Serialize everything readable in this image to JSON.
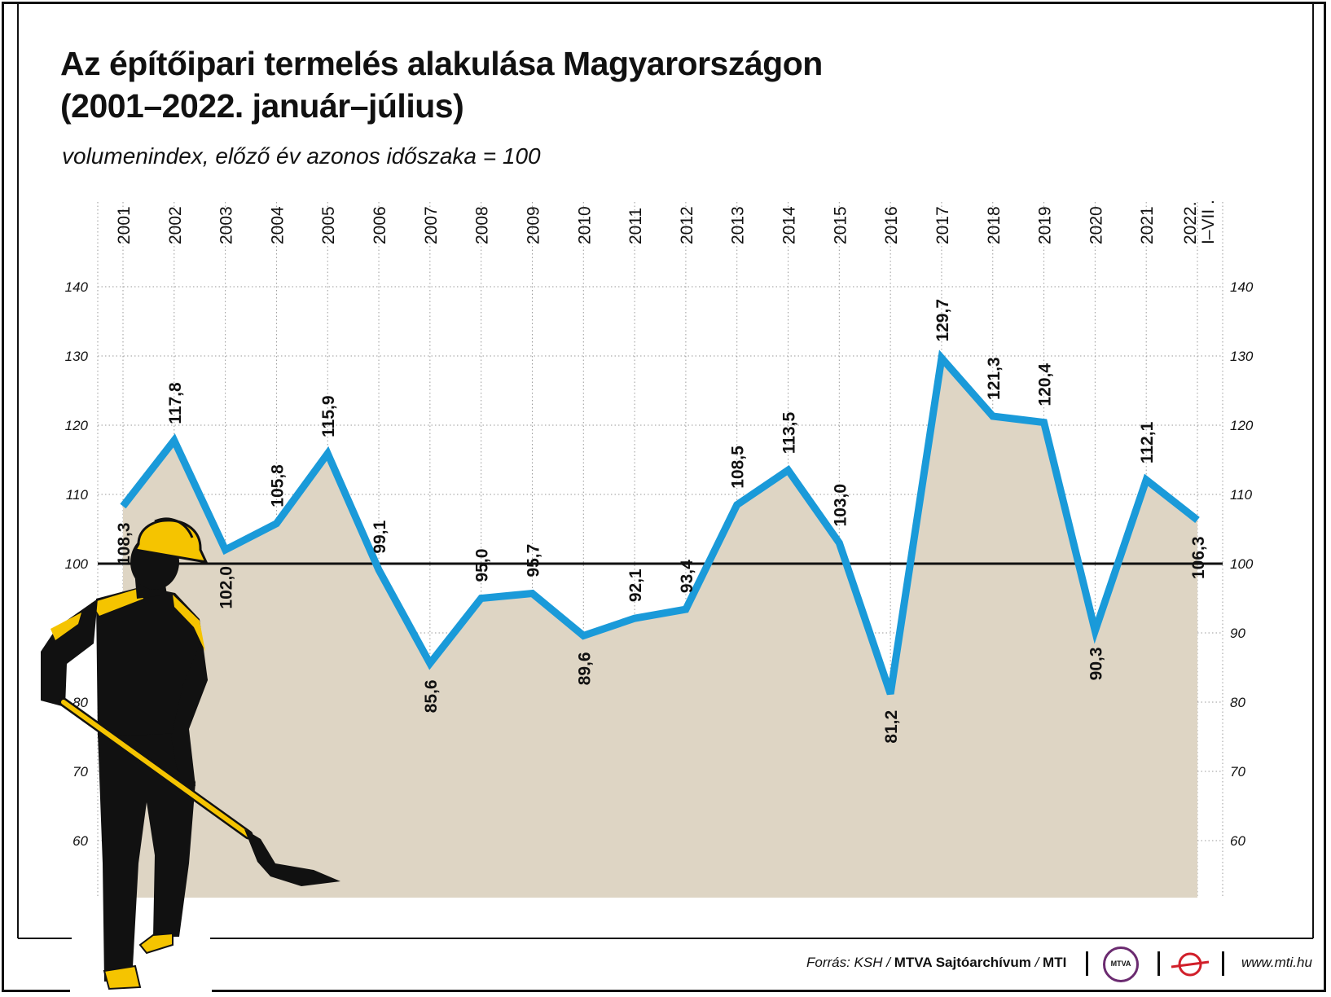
{
  "header": {
    "title_line1": "Az építőipari termelés alakulása Magyarországon",
    "title_line2": "(2001–2022. január–július)",
    "subtitle": "volumenindex, előző év azonos időszaka = 100"
  },
  "footer": {
    "source_prefix": "Forrás: KSH /",
    "source_bold": "MTVA Sajtóarchívum",
    "source_sep": "/",
    "source_mti": "MTI",
    "logo_text": "MTVA",
    "website": "www.mti.hu"
  },
  "colors": {
    "line": "#1a9ad9",
    "area": "#ded5c4",
    "grid": "#9a9a9a",
    "baseline": "#111111",
    "text": "#111111",
    "worker_helmet": "#f5c400",
    "worker_body": "#111111"
  },
  "chart_data": {
    "type": "line",
    "x": [
      "2001",
      "2002",
      "2003",
      "2004",
      "2005",
      "2006",
      "2007",
      "2008",
      "2009",
      "2010",
      "2011",
      "2012",
      "2013",
      "2014",
      "2015",
      "2016",
      "2017",
      "2018",
      "2019",
      "2020",
      "2021",
      "2022. I–VII ."
    ],
    "series": [
      {
        "values": [
          108.3,
          117.8,
          102.0,
          105.8,
          115.9,
          99.1,
          85.6,
          95.0,
          95.7,
          89.6,
          92.1,
          93.4,
          108.5,
          113.5,
          103.0,
          81.2,
          129.7,
          121.3,
          120.4,
          90.3,
          112.1,
          106.3
        ],
        "labels": [
          "108,3",
          "117,8",
          "102,0",
          "105,8",
          "115,9",
          "99,1",
          "85,6",
          "95,0",
          "95,7",
          "89,6",
          "92,1",
          "93,4",
          "108,5",
          "113,5",
          "103,0",
          "81,2",
          "129,7",
          "121,3",
          "120,4",
          "90,3",
          "112,1",
          "106,3"
        ]
      }
    ],
    "yticks": [
      60,
      70,
      80,
      90,
      100,
      110,
      120,
      130,
      140
    ],
    "ylim": [
      50,
      140
    ],
    "reference_line": 100,
    "area_fill": true,
    "grid": "vertical dotted"
  }
}
